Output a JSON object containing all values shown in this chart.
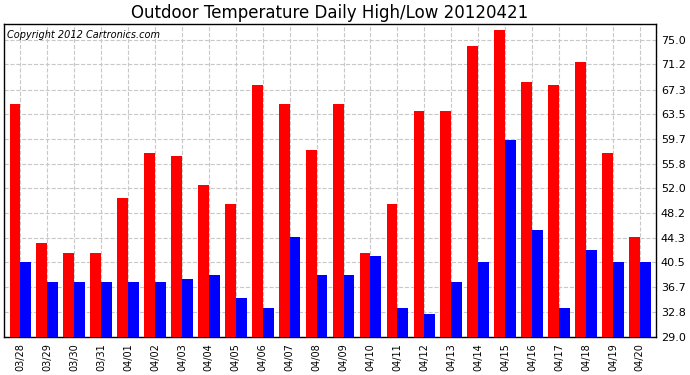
{
  "title": "Outdoor Temperature Daily High/Low 20120421",
  "copyright": "Copyright 2012 Cartronics.com",
  "categories": [
    "03/28",
    "03/29",
    "03/30",
    "03/31",
    "04/01",
    "04/02",
    "04/03",
    "04/04",
    "04/05",
    "04/06",
    "04/07",
    "04/08",
    "04/09",
    "04/10",
    "04/11",
    "04/12",
    "04/13",
    "04/14",
    "04/15",
    "04/16",
    "04/17",
    "04/18",
    "04/19",
    "04/20"
  ],
  "highs": [
    65.0,
    43.5,
    42.0,
    42.0,
    50.5,
    57.5,
    57.0,
    52.5,
    49.5,
    68.0,
    65.0,
    58.0,
    65.0,
    42.0,
    49.5,
    64.0,
    64.0,
    74.0,
    76.5,
    68.5,
    68.0,
    71.5,
    57.5,
    44.5
  ],
  "lows": [
    40.5,
    37.5,
    37.5,
    37.5,
    37.5,
    37.5,
    38.0,
    38.5,
    35.0,
    33.5,
    44.5,
    38.5,
    38.5,
    41.5,
    33.5,
    32.5,
    37.5,
    40.5,
    59.5,
    45.5,
    33.5,
    42.5,
    40.5,
    40.5
  ],
  "high_color": "#ff0000",
  "low_color": "#0000ff",
  "bg_color": "#ffffff",
  "grid_color": "#c8c8c8",
  "yticks": [
    29.0,
    32.8,
    36.7,
    40.5,
    44.3,
    48.2,
    52.0,
    55.8,
    59.7,
    63.5,
    67.3,
    71.2,
    75.0
  ],
  "ylim": [
    29.0,
    77.5
  ],
  "ybase": 29.0,
  "title_fontsize": 12,
  "copyright_fontsize": 7,
  "bar_width": 0.4
}
